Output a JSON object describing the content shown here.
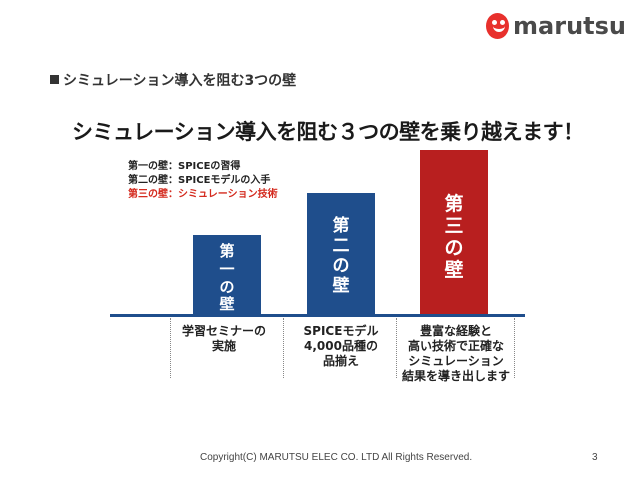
{
  "logo": {
    "text": "marutsu"
  },
  "section_heading": "シミュレーション導入を阻む3つの壁",
  "main_title": "シミュレーション導入を阻む３つの壁を乗り越えます！",
  "legend": [
    "第一の壁：SPICEの習得",
    "第二の壁：SPICEモデルの入手",
    "第三の壁：シミュレーション技術"
  ],
  "bars": [
    {
      "chars": [
        "第",
        "一",
        "の",
        "壁"
      ],
      "color": "#1f4e8c"
    },
    {
      "chars": [
        "第",
        "二",
        "の",
        "壁"
      ],
      "color": "#1f4e8c"
    },
    {
      "chars": [
        "第",
        "三",
        "の",
        "壁"
      ],
      "color": "#b81f1f"
    }
  ],
  "descriptions": [
    [
      "学習セミナーの",
      "実施"
    ],
    [
      "SPICEモデル",
      "4,000品種の",
      "品揃え"
    ],
    [
      "豊富な経験と",
      "高い技術で正確な",
      "シミュレーション",
      "結果を導き出します"
    ]
  ],
  "footer": "Copyright(C) MARUTSU ELEC CO. LTD All Rights Reserved.",
  "page_number": "3"
}
